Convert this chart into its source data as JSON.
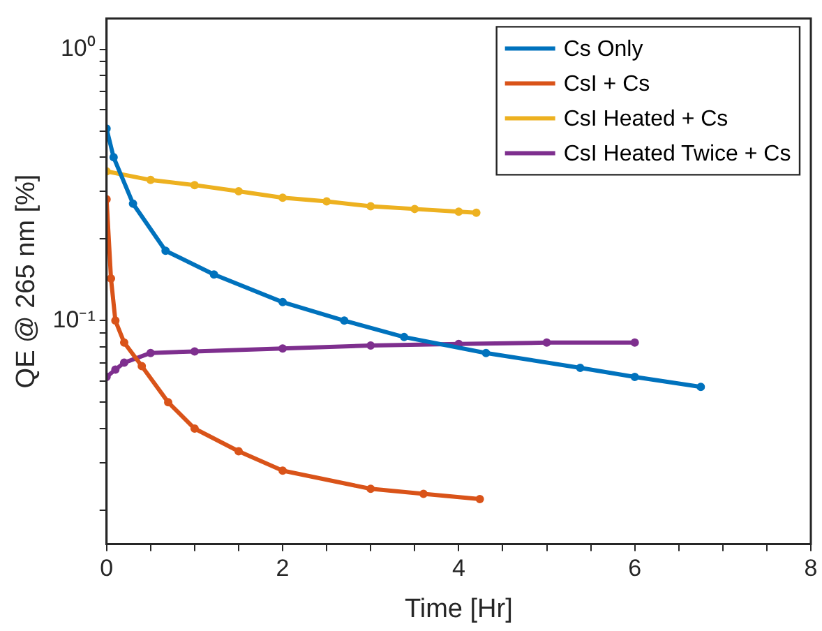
{
  "chart_data": {
    "type": "line",
    "xlabel": "Time [Hr]",
    "ylabel": "QE @ 265 nm [%]",
    "log": "y",
    "grid": false,
    "legend": "top right",
    "marker": "circle",
    "line_style": "solid",
    "xlim": [
      0,
      8
    ],
    "ylim": [
      0.015,
      1.3
    ],
    "xticks": [
      0,
      {
        "value": 0.5,
        "label": null
      },
      {
        "value": 1,
        "label": null
      },
      {
        "value": 1.5,
        "label": null
      },
      2,
      {
        "value": 2.5,
        "label": null
      },
      {
        "value": 3,
        "label": null
      },
      {
        "value": 3.5,
        "label": null
      },
      4,
      {
        "value": 4.5,
        "label": null
      },
      {
        "value": 5,
        "label": null
      },
      {
        "value": 5.5,
        "label": null
      },
      6,
      {
        "value": 6.5,
        "label": null
      },
      {
        "value": 7,
        "label": null
      },
      {
        "value": 7.5,
        "label": null
      },
      8
    ],
    "yticks": [
      {
        "value": 0.02,
        "label": null
      },
      {
        "value": 0.03,
        "label": null
      },
      {
        "value": 0.04,
        "label": null
      },
      {
        "value": 0.05,
        "label": null
      },
      {
        "value": 0.06,
        "label": null
      },
      {
        "value": 0.07,
        "label": null
      },
      {
        "value": 0.08,
        "label": null
      },
      {
        "value": 0.09,
        "label": null
      },
      {
        "value": 0.1,
        "label": "10⁻¹"
      },
      {
        "value": 0.2,
        "label": null
      },
      {
        "value": 0.3,
        "label": null
      },
      {
        "value": 0.4,
        "label": null
      },
      {
        "value": 0.5,
        "label": null
      },
      {
        "value": 0.6,
        "label": null
      },
      {
        "value": 0.7,
        "label": null
      },
      {
        "value": 0.8,
        "label": null
      },
      {
        "value": 0.9,
        "label": null
      },
      {
        "value": 1,
        "label": "10⁰"
      }
    ],
    "series": [
      {
        "name": "Cs Only",
        "color": "#0072bd",
        "x": [
          0,
          0.08,
          0.3,
          0.67,
          1.22,
          2,
          2.7,
          3.38,
          4.31,
          5.38,
          6,
          6.75
        ],
        "values": [
          0.51,
          0.4,
          0.27,
          0.181,
          0.148,
          0.117,
          0.1,
          0.087,
          0.076,
          0.067,
          0.062,
          0.057
        ]
      },
      {
        "name": "CsI + Cs",
        "color": "#d95319",
        "x": [
          0,
          0.05,
          0.1,
          0.2,
          0.4,
          0.7,
          1,
          1.5,
          2,
          3,
          3.6,
          4.24
        ],
        "values": [
          0.28,
          0.143,
          0.1,
          0.083,
          0.068,
          0.05,
          0.04,
          0.033,
          0.028,
          0.024,
          0.023,
          0.022
        ]
      },
      {
        "name": "CsI Heated + Cs",
        "color": "#edb120",
        "x": [
          0,
          0.5,
          1,
          1.5,
          2,
          2.5,
          3,
          3.5,
          4,
          4.2
        ],
        "values": [
          0.355,
          0.33,
          0.316,
          0.3,
          0.284,
          0.275,
          0.264,
          0.258,
          0.252,
          0.25
        ]
      },
      {
        "name": "CsI Heated Twice + Cs",
        "color": "#7e2f8e",
        "x": [
          0,
          0.1,
          0.2,
          0.5,
          1,
          2,
          3,
          4,
          5,
          6
        ],
        "values": [
          0.062,
          0.066,
          0.07,
          0.076,
          0.077,
          0.079,
          0.081,
          0.082,
          0.083,
          0.083
        ]
      }
    ]
  }
}
